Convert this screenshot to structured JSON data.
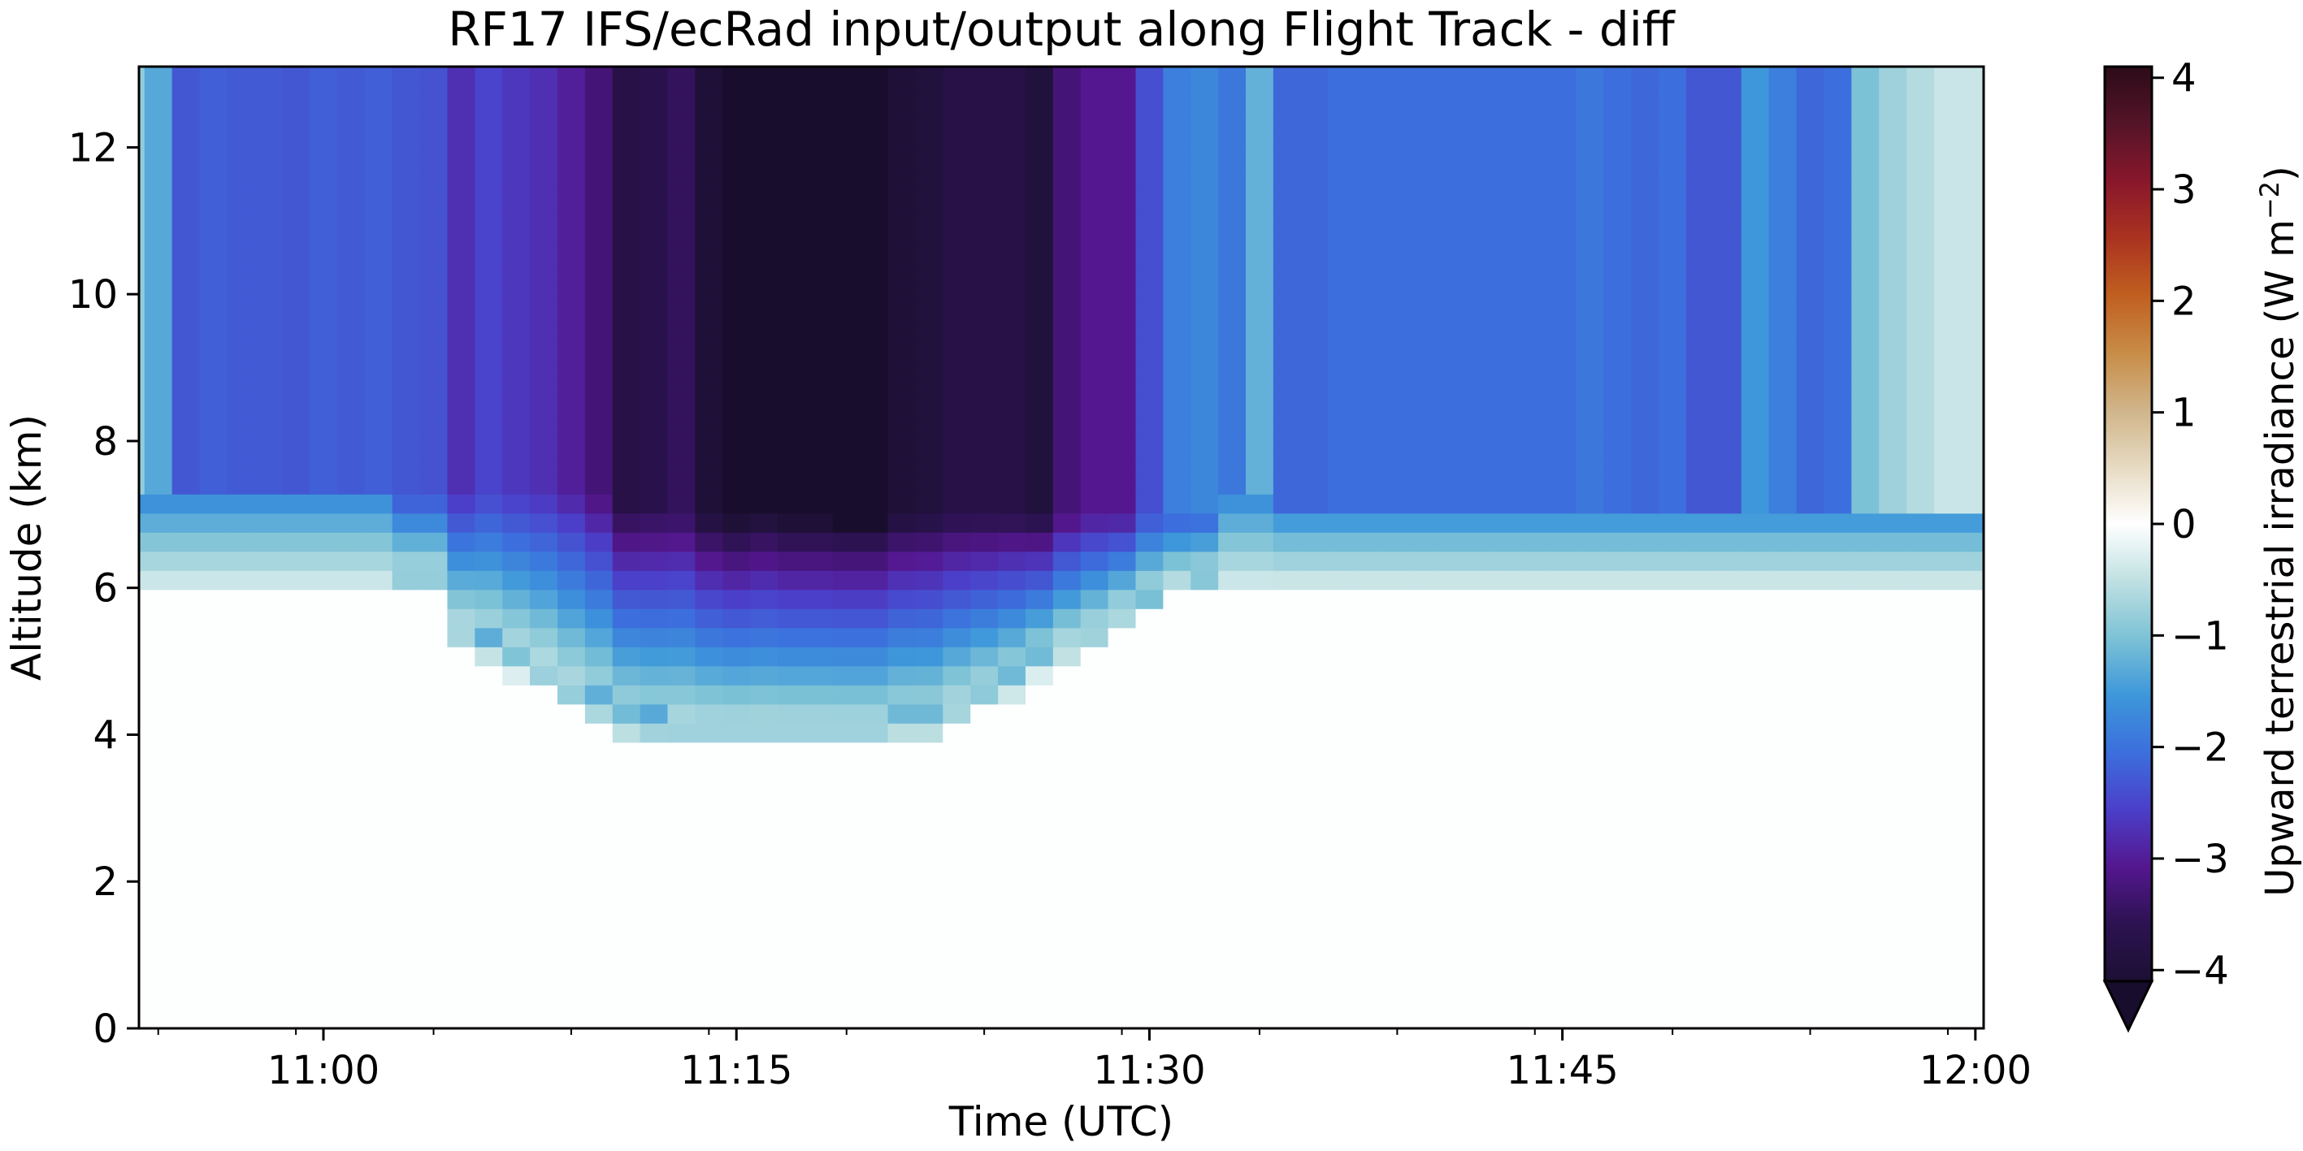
{
  "chart_data": {
    "type": "heatmap",
    "title": "RF17 IFS/ecRad input/output along Flight Track - diff",
    "xlabel": "Time (UTC)",
    "ylabel": "Altitude (km)",
    "colorbar_label": "Upward terrestrial irradiance (W m⁻²)",
    "colorbar_label_main": "Upward terrestrial irradiance (W m",
    "colorbar_label_sup": "−2",
    "colorbar_label_close": ")",
    "colormap": "diverging: dark purple (negative) – white (0) – dark red/brown (positive)",
    "colorbar_extend": "min",
    "clim": [
      -4.1,
      4.1
    ],
    "colorbar_ticks": [
      -4,
      -3,
      -2,
      -1,
      0,
      1,
      2,
      3,
      4
    ],
    "colorbar_tick_labels": [
      "−4",
      "−3",
      "−2",
      "−1",
      "0",
      "1",
      "2",
      "3",
      "4"
    ],
    "xlim_minutes_after_10_00": [
      53.3,
      120.3
    ],
    "xticks": [
      "11:00",
      "11:15",
      "11:30",
      "11:45",
      "12:00"
    ],
    "ylim": [
      0,
      13.1
    ],
    "yticks": [
      0,
      2,
      4,
      6,
      8,
      10,
      12
    ],
    "grid": false,
    "time_columns_utc": [
      "10:53",
      "10:54",
      "10:55",
      "10:56",
      "10:57",
      "10:58",
      "10:59",
      "11:00",
      "11:01",
      "11:02",
      "11:03",
      "11:04",
      "11:05",
      "11:06",
      "11:07",
      "11:08",
      "11:09",
      "11:10",
      "11:11",
      "11:12",
      "11:13",
      "11:14",
      "11:15",
      "11:16",
      "11:17",
      "11:18",
      "11:19",
      "11:20",
      "11:21",
      "11:22",
      "11:23",
      "11:24",
      "11:25",
      "11:26",
      "11:27",
      "11:28",
      "11:29",
      "11:30",
      "11:31",
      "11:32",
      "11:33",
      "11:34",
      "11:35",
      "11:36",
      "11:37",
      "11:38",
      "11:39",
      "11:40",
      "11:41",
      "11:42",
      "11:43",
      "11:44",
      "11:45",
      "11:46",
      "11:47",
      "11:48",
      "11:49",
      "11:50",
      "11:51",
      "11:52",
      "11:53",
      "11:54",
      "11:55",
      "11:56",
      "11:57",
      "11:58",
      "11:59",
      "12:00"
    ],
    "cloud_top_km": [
      7.3,
      7.3,
      7.3,
      7.3,
      7.3,
      7.3,
      7.3,
      7.3,
      7.3,
      7.3,
      7.3,
      7.3,
      7.3,
      7.3,
      7.3,
      7.3,
      7.3,
      7.3,
      7.1,
      7.1,
      7.0,
      7.0,
      7.0,
      7.0,
      7.0,
      7.0,
      7.0,
      7.0,
      7.0,
      7.0,
      7.0,
      7.0,
      7.0,
      7.0,
      7.0,
      7.0,
      7.0,
      7.0,
      7.1,
      7.1,
      7.3,
      7.3,
      7.1,
      7.1,
      7.1,
      7.1,
      7.1,
      7.1,
      7.1,
      7.1,
      7.1,
      7.1,
      7.1,
      7.1,
      7.1,
      7.1,
      7.1,
      7.1,
      7.1,
      7.1,
      7.1,
      7.1,
      7.1,
      7.1,
      7.1,
      7.1,
      7.1,
      7.1
    ],
    "upper_layer_irradiance_diff": [
      -1.0,
      -1.5,
      -2.5,
      -2.4,
      -2.45,
      -2.45,
      -2.5,
      -2.4,
      -2.45,
      -2.4,
      -2.5,
      -2.55,
      -3.0,
      -2.75,
      -2.9,
      -3.0,
      -3.2,
      -3.5,
      -3.9,
      -3.85,
      -3.7,
      -4.05,
      -4.2,
      -4.1,
      -4.2,
      -4.2,
      -4.25,
      -4.25,
      -4.05,
      -4.0,
      -3.9,
      -3.9,
      -3.9,
      -4.0,
      -3.5,
      -3.3,
      -3.3,
      -2.6,
      -2.0,
      -1.9,
      -2.1,
      -1.4,
      -2.3,
      -2.3,
      -2.2,
      -2.2,
      -2.2,
      -2.2,
      -2.2,
      -2.2,
      -2.2,
      -2.2,
      -2.2,
      -2.1,
      -2.2,
      -2.3,
      -2.2,
      -2.5,
      -2.5,
      -1.7,
      -2.0,
      -2.3,
      -2.2,
      -1.2,
      -0.9,
      -0.7,
      -0.5,
      -0.5
    ],
    "lower_cloud_base_km": [
      null,
      null,
      null,
      null,
      null,
      null,
      null,
      null,
      null,
      null,
      6.0,
      6.0,
      5.2,
      5.0,
      4.8,
      4.6,
      4.3,
      4.1,
      3.9,
      3.8,
      3.8,
      3.8,
      3.8,
      3.8,
      3.8,
      3.8,
      3.8,
      3.8,
      3.9,
      3.9,
      4.1,
      4.3,
      4.5,
      4.8,
      5.0,
      5.2,
      5.5,
      5.7,
      5.9,
      6.0,
      null,
      null,
      null,
      null,
      null,
      null,
      null,
      null,
      null,
      null,
      null,
      null,
      null,
      null,
      null,
      null,
      null,
      null,
      null,
      null,
      null,
      null,
      null,
      null,
      null,
      null,
      null,
      null
    ]
  }
}
